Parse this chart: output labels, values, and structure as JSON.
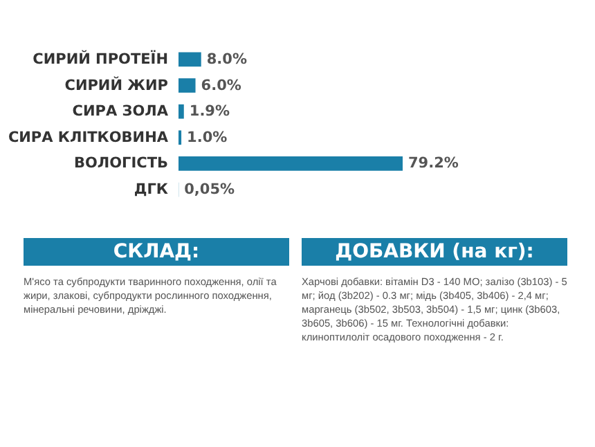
{
  "chart_data": {
    "type": "bar",
    "orientation": "horizontal",
    "categories": [
      "СИРИЙ ПРОТЕЇН",
      "СИРИЙ ЖИР",
      "СИРА ЗОЛА",
      "СИРА КЛІТКОВИНА",
      "ВОЛОГІСТЬ",
      "ДГК"
    ],
    "values": [
      8.0,
      6.0,
      1.9,
      1.0,
      79.2,
      0.05
    ],
    "value_labels": [
      "8.0%",
      "6.0%",
      "1.9%",
      "1.0%",
      "79.2%",
      "0,05%"
    ],
    "color": "#1a7fa8",
    "tick_labels": "y",
    "annotations": [
      "СКЛАД:",
      "М'ясо та субпродукти тваринного походження, олії та жири, злакові, субпродукти рослинного походження, мінеральні речовини, дріжджі.",
      "ДОБАВКИ (на кг):",
      "Харчові добавки: вітамін D3 - 140 МО; залізо (3b103) - 5 мг; йод (3b202) - 0.3 мг; мідь (3b405, 3b406) - 2,4 мг; марганець (3b502, 3b503, 3b504) - 1,5 мг; цинк (3b603, 3b605, 3b606) - 15 мг. Технологічні добавки: клиноптилоліт осадового походження - 2 г."
    ]
  }
}
